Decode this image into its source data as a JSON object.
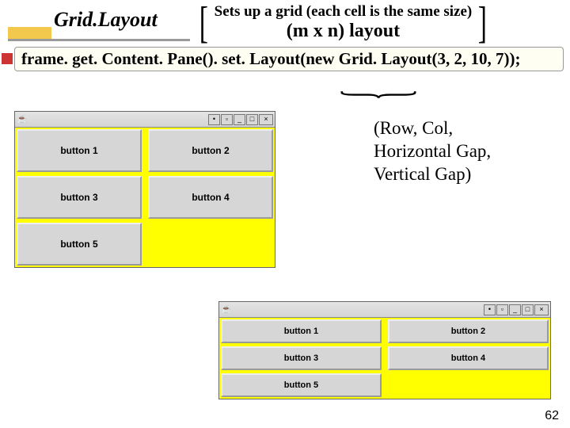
{
  "header": {
    "title": "Grid.Layout",
    "desc_line1": "Sets up a grid (each cell is the same size)",
    "desc_line2": "(m x n) layout"
  },
  "code_line": "frame. get. Content. Pane(). set. Layout(new Grid. Layout(3, 2, 10, 7));",
  "annotation": {
    "l1": "(Row, Col,",
    "l2": "Horizontal Gap,",
    "l3": "Vertical Gap)"
  },
  "window1": {
    "buttons": [
      "button 1",
      "button 2",
      "button 3",
      "button 4",
      "button 5"
    ],
    "tb": {
      "dot": "•",
      "sq": "▫",
      "min": "_",
      "max": "□",
      "close": "×"
    },
    "cup": "☕"
  },
  "window2": {
    "buttons": [
      "button 1",
      "button 2",
      "button 3",
      "button 4",
      "button 5"
    ],
    "tb": {
      "dot": "•",
      "sq": "▫",
      "min": "_",
      "max": "□",
      "close": "×"
    },
    "cup": "☕"
  },
  "page_number": "62",
  "colors": {
    "yellow": "#ffff00",
    "button_gray": "#d6d6d6",
    "red_bullet": "#cc3333",
    "gold": "#f2c94c"
  }
}
